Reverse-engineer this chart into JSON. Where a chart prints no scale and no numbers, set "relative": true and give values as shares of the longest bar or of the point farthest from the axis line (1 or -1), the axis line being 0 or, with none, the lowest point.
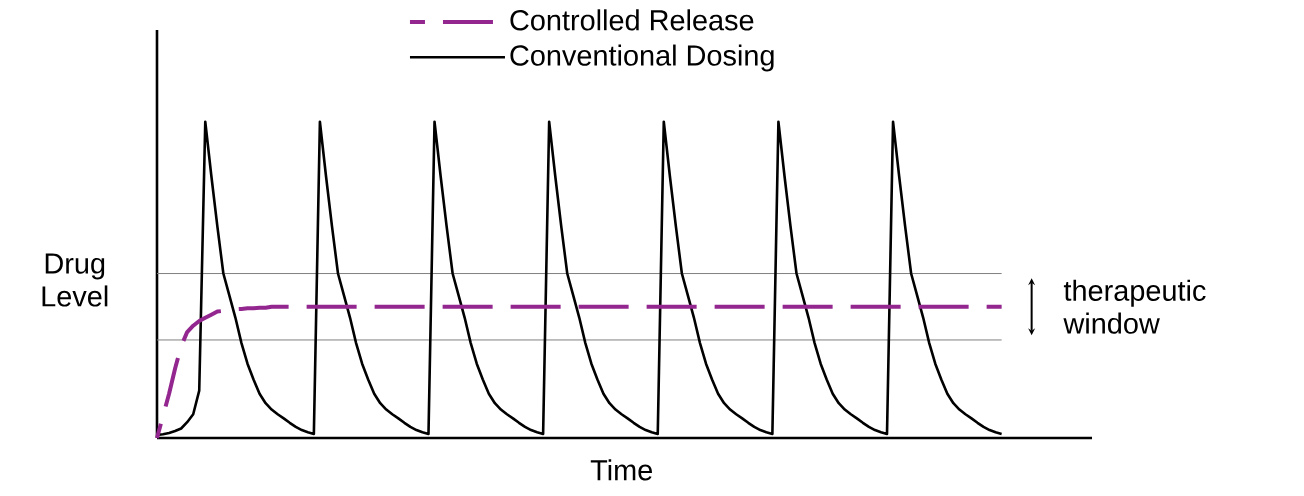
{
  "chart_data": {
    "type": "line",
    "relative": true,
    "xlabel": "Time",
    "ylabel": "Drug Level",
    "legend": "top",
    "categories": [
      null,
      null,
      null,
      null,
      null,
      null,
      null,
      null,
      null,
      null,
      null,
      null,
      null,
      null,
      null,
      null,
      null,
      null,
      null,
      null,
      null,
      null,
      null,
      null,
      null,
      null,
      null,
      null,
      null,
      null,
      null,
      null,
      null,
      null,
      null,
      null,
      null,
      null,
      null,
      null,
      null,
      null,
      null,
      null,
      null,
      null,
      null,
      null,
      null,
      null,
      null,
      null,
      null,
      null,
      null,
      null,
      null,
      null,
      null,
      null,
      null,
      null,
      null,
      null,
      null,
      null,
      null,
      null,
      null,
      null,
      null,
      null,
      null,
      null,
      null,
      null,
      null,
      null,
      null,
      null,
      null,
      null,
      null,
      null,
      null,
      null,
      null,
      null,
      null,
      null,
      null,
      null,
      null,
      null,
      null,
      null,
      null,
      null,
      null,
      null,
      null,
      null,
      null,
      null,
      null,
      null,
      null,
      null,
      null,
      null,
      null,
      null,
      null,
      null,
      null,
      null,
      null,
      null,
      null,
      null,
      null,
      null,
      null,
      null,
      null,
      null,
      null,
      null,
      null,
      null,
      null,
      null,
      null,
      null,
      null,
      null,
      null,
      null,
      null,
      null,
      null
    ],
    "series": [
      {
        "name": "Controlled Release",
        "color": "#93278f",
        "line_style": "dashed",
        "values": [
          0,
          0.07,
          0.14,
          0.22,
          0.29,
          0.335,
          0.355,
          0.37,
          0.38,
          0.39,
          0.4,
          0.402,
          0.405,
          0.407,
          0.408,
          0.41,
          0.41,
          0.412,
          0.412,
          0.415,
          0.415,
          0.415,
          0.415,
          0.415,
          0.415,
          0.415,
          0.415,
          0.415,
          0.415,
          0.415,
          0.415,
          0.415,
          0.415,
          0.415,
          0.415,
          0.415,
          0.415,
          0.415,
          0.415,
          0.415,
          0.415,
          0.415,
          0.415,
          0.415,
          0.415,
          0.415,
          0.415,
          0.415,
          0.415,
          0.415,
          0.415,
          0.415,
          0.415,
          0.415,
          0.415,
          0.415,
          0.415,
          0.415,
          0.415,
          0.415,
          0.415,
          0.415,
          0.415,
          0.415,
          0.415,
          0.415,
          0.415,
          0.415,
          0.415,
          0.415,
          0.415,
          0.415,
          0.415,
          0.415,
          0.415,
          0.415,
          0.415,
          0.415,
          0.415,
          0.415,
          0.415,
          0.415,
          0.415,
          0.415,
          0.415,
          0.415,
          0.415,
          0.415,
          0.415,
          0.415,
          0.415,
          0.415,
          0.415,
          0.415,
          0.415,
          0.415,
          0.415,
          0.415,
          0.415,
          0.415,
          0.415,
          0.415,
          0.415,
          0.415,
          0.415,
          0.415,
          0.415,
          0.415,
          0.415,
          0.415,
          0.415,
          0.415,
          0.415,
          0.415,
          0.415,
          0.415,
          0.415,
          0.415,
          0.415,
          0.415,
          0.415,
          0.415,
          0.415,
          0.415,
          0.415,
          0.415,
          0.415,
          0.415,
          0.415,
          0.415,
          0.415,
          0.415,
          0.415,
          0.415,
          0.415,
          0.415,
          0.415,
          0.415,
          0.415,
          0.415,
          0.415
        ]
      },
      {
        "name": "Conventional Dosing",
        "color": "#000000",
        "line_style": "solid",
        "values": [
          0.01,
          0.012,
          0.016,
          0.022,
          0.03,
          0.05,
          0.075,
          0.15,
          1,
          0.83,
          0.67,
          0.52,
          0.45,
          0.38,
          0.3,
          0.235,
          0.185,
          0.14,
          0.11,
          0.09,
          0.075,
          0.062,
          0.048,
          0.035,
          0.025,
          0.018,
          0.013,
          1,
          0.83,
          0.67,
          0.52,
          0.45,
          0.38,
          0.3,
          0.235,
          0.185,
          0.14,
          0.11,
          0.09,
          0.075,
          0.062,
          0.048,
          0.035,
          0.025,
          0.018,
          0.013,
          1,
          0.83,
          0.67,
          0.52,
          0.45,
          0.38,
          0.3,
          0.235,
          0.185,
          0.14,
          0.11,
          0.09,
          0.075,
          0.062,
          0.048,
          0.035,
          0.025,
          0.018,
          0.013,
          1,
          0.83,
          0.67,
          0.52,
          0.45,
          0.38,
          0.3,
          0.235,
          0.185,
          0.14,
          0.11,
          0.09,
          0.075,
          0.062,
          0.048,
          0.035,
          0.025,
          0.018,
          0.013,
          1,
          0.83,
          0.67,
          0.52,
          0.45,
          0.38,
          0.3,
          0.235,
          0.185,
          0.14,
          0.11,
          0.09,
          0.075,
          0.062,
          0.048,
          0.035,
          0.025,
          0.018,
          0.013,
          1,
          0.83,
          0.67,
          0.52,
          0.45,
          0.38,
          0.3,
          0.235,
          0.185,
          0.14,
          0.11,
          0.09,
          0.075,
          0.062,
          0.048,
          0.035,
          0.025,
          0.018,
          0.013,
          1,
          0.83,
          0.67,
          0.52,
          0.45,
          0.38,
          0.3,
          0.235,
          0.185,
          0.14,
          0.11,
          0.09,
          0.075,
          0.062,
          0.048,
          0.035,
          0.025,
          0.018,
          0.013
        ]
      }
    ],
    "ref_lines": [
      {
        "axis": "y",
        "value": 0.52,
        "color": "#808080"
      },
      {
        "axis": "y",
        "value": 0.31,
        "color": "#808080"
      }
    ],
    "annotations": [
      "therapeutic window"
    ]
  }
}
